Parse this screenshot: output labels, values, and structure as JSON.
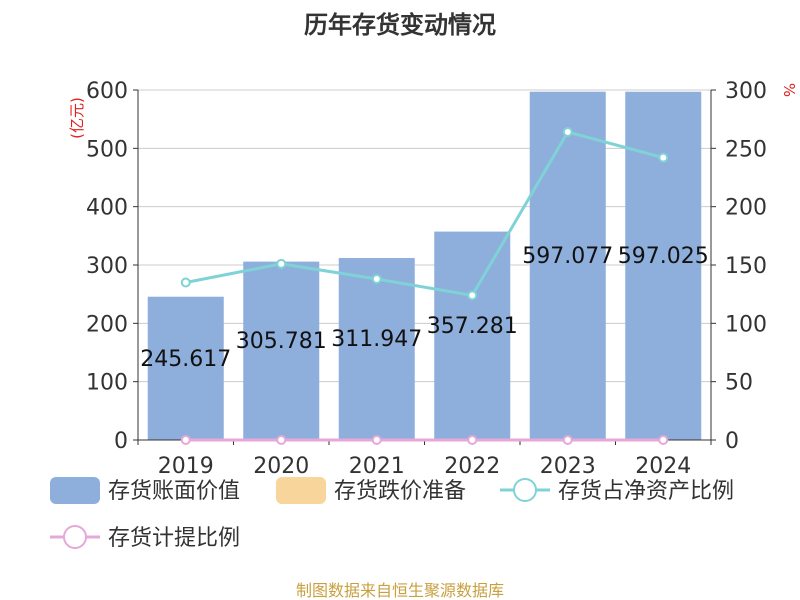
{
  "title": "历年存货变动情况",
  "source": "制图数据来自恒生聚源数据库",
  "chart_data": {
    "type": "bar",
    "categories": [
      "2019",
      "2020",
      "2021",
      "2022",
      "2023",
      "2024"
    ],
    "series": [
      {
        "name": "存货账面价值",
        "kind": "bar",
        "axis": "left",
        "color": "#8eaedb",
        "values": [
          245.617,
          305.781,
          311.947,
          357.281,
          597.077,
          597.025
        ]
      },
      {
        "name": "存货跌价准备",
        "kind": "bar",
        "axis": "left",
        "color": "#f8d59a",
        "values": [
          0,
          0,
          0,
          0,
          0,
          0
        ]
      },
      {
        "name": "存货占净资产比例",
        "kind": "line",
        "axis": "right",
        "color": "#7fd3d6",
        "values": [
          135,
          151,
          138,
          124,
          264,
          242
        ]
      },
      {
        "name": "存货计提比例",
        "kind": "line",
        "axis": "right",
        "color": "#e6a8d8",
        "values": [
          0,
          0,
          0,
          0,
          0,
          0
        ]
      }
    ],
    "data_labels": [
      "245.617",
      "305.781",
      "311.947",
      "357.281",
      "597.077",
      "597.025"
    ],
    "y_left": {
      "unit": "(亿元)",
      "ylim": [
        0,
        600
      ],
      "ticks": [
        "0",
        "100",
        "200",
        "300",
        "400",
        "500",
        "600"
      ]
    },
    "y_right": {
      "unit": "%",
      "ylim": [
        0,
        300
      ],
      "ticks": [
        "0",
        "50",
        "100",
        "150",
        "200",
        "250",
        "300"
      ]
    },
    "grid": true,
    "legend_position": "bottom"
  }
}
